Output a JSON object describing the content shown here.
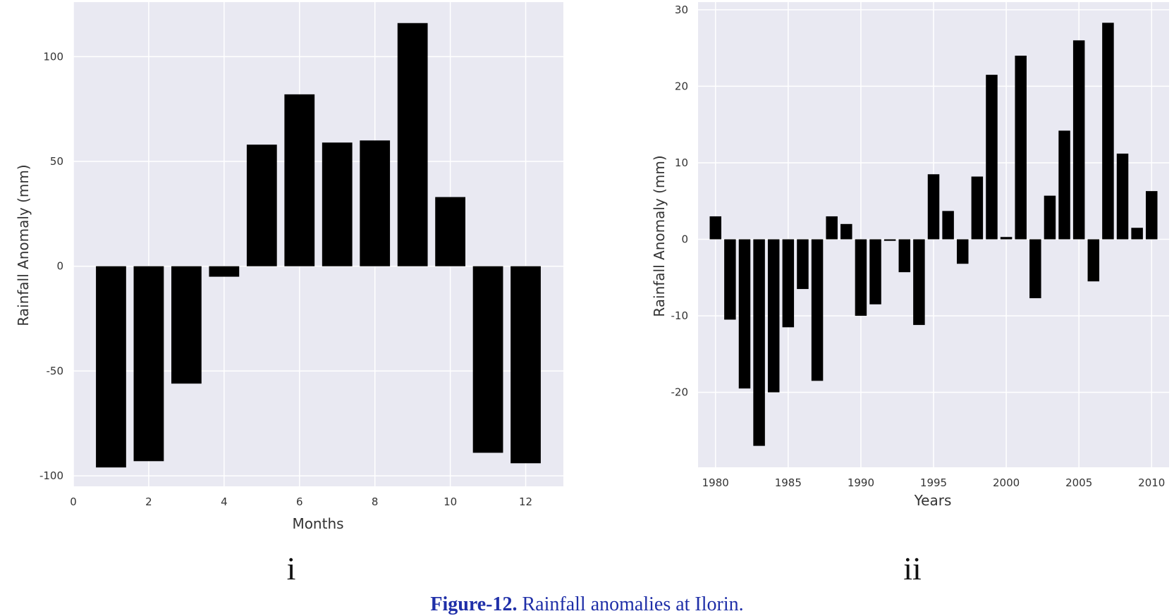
{
  "caption": {
    "label": "Figure-12.",
    "text": " Rainfall anomalies at Ilorin."
  },
  "chart_data": [
    {
      "type": "bar",
      "panel_label": "i",
      "xlabel": "Months",
      "ylabel": "Rainfall  Anomaly (mm)",
      "x": [
        1,
        2,
        3,
        4,
        5,
        6,
        7,
        8,
        9,
        10,
        11,
        12
      ],
      "values": [
        -96,
        -93,
        -56,
        -5,
        58,
        82,
        59,
        60,
        116,
        33,
        -89,
        -94
      ],
      "xlim": [
        0,
        13
      ],
      "ylim": [
        -105,
        126
      ],
      "xticks": [
        0,
        2,
        4,
        6,
        8,
        10,
        12
      ],
      "yticks": [
        -100,
        -50,
        0,
        50,
        100
      ],
      "bar_color": "#000000",
      "background": "#e9e9f2",
      "grid": true
    },
    {
      "type": "bar",
      "panel_label": "ii",
      "xlabel": "Years",
      "ylabel": "Rainfall  Anomaly (mm)",
      "x": [
        1980,
        1981,
        1982,
        1983,
        1984,
        1985,
        1986,
        1987,
        1988,
        1989,
        1990,
        1991,
        1992,
        1993,
        1994,
        1995,
        1996,
        1997,
        1998,
        1999,
        2000,
        2001,
        2002,
        2003,
        2004,
        2005,
        2006,
        2007,
        2008,
        2009,
        2010
      ],
      "values": [
        3,
        -10.5,
        -19.5,
        -27,
        -20,
        -11.5,
        -6.5,
        -18.5,
        3,
        2,
        -10,
        -8.5,
        -0.2,
        -4.3,
        -11.2,
        8.5,
        3.7,
        -3.2,
        8.2,
        21.5,
        0.3,
        24,
        -7.7,
        5.7,
        14.2,
        26,
        -5.5,
        28.3,
        11.2,
        1.5,
        6.3
      ],
      "xlim": [
        1978.8,
        2011.2
      ],
      "ylim": [
        -29.8,
        31
      ],
      "xticks": [
        1980,
        1985,
        1990,
        1995,
        2000,
        2005,
        2010
      ],
      "yticks": [
        -20,
        -10,
        0,
        10,
        20,
        30
      ],
      "bar_color": "#000000",
      "background": "#e9e9f2",
      "grid": true
    }
  ]
}
